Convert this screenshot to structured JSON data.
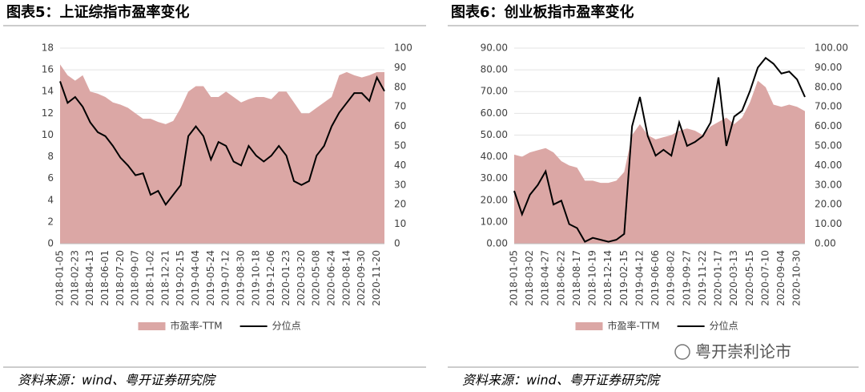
{
  "chart_data": [
    {
      "type": "combo",
      "title": "图表5：上证综指市盈率变化",
      "source": "资料来源：wind、粤开证券研究院",
      "categories": [
        "2018-01-05",
        null,
        "2018-02-23",
        null,
        "2018-04-13",
        null,
        "2018-06-01",
        null,
        "2018-07-20",
        null,
        "2018-09-07",
        null,
        "2018-11-02",
        null,
        "2018-12-21",
        null,
        "2019-02-15",
        null,
        "2019-04-04",
        null,
        "2019-05-24",
        null,
        "2019-07-12",
        null,
        "2019-08-30",
        null,
        "2019-10-18",
        null,
        "2019-12-06",
        null,
        "2020-01-23",
        null,
        "2020-03-20",
        null,
        "2020-05-08",
        null,
        "2020-06-24",
        null,
        "2020-08-14",
        null,
        "2020-09-30",
        null,
        "2020-11-20",
        null
      ],
      "series": [
        {
          "name": "市盈率-TTM",
          "type": "area",
          "color": "#dba7a5",
          "values": [
            16.5,
            15.5,
            15,
            15.5,
            14,
            13.8,
            13.5,
            13,
            12.8,
            12.5,
            12,
            11.5,
            11.5,
            11.2,
            11,
            11.3,
            12.5,
            14,
            14.5,
            14.5,
            13.5,
            13.5,
            14,
            13.5,
            13,
            13.3,
            13.5,
            13.5,
            13.3,
            14,
            14,
            13,
            12,
            12,
            12.5,
            13,
            13.5,
            15.5,
            15.8,
            15.5,
            15.3,
            15.5,
            15.8,
            15.8
          ]
        },
        {
          "name": "分位点",
          "type": "line",
          "axis": "y2",
          "color": "#000000",
          "values": [
            83,
            72,
            75,
            70,
            62,
            57,
            55,
            50,
            44,
            40,
            35,
            36,
            25,
            27,
            20,
            25,
            30,
            55,
            60,
            55,
            43,
            52,
            50,
            42,
            40,
            50,
            45,
            42,
            45,
            50,
            45,
            32,
            30,
            32,
            45,
            50,
            60,
            67,
            72,
            77,
            77,
            73,
            85,
            78
          ]
        }
      ],
      "ylim": [
        0,
        18
      ],
      "yticks": [
        0,
        2,
        4,
        6,
        8,
        10,
        12,
        14,
        16,
        18
      ],
      "y2lim": [
        0,
        100
      ],
      "y2ticks": [
        0,
        10,
        20,
        30,
        40,
        50,
        60,
        70,
        80,
        90,
        100
      ],
      "grid": true
    },
    {
      "type": "combo",
      "title": "图表6：创业板指市盈率变化",
      "source": "资料来源：wind、粤开证券研究院",
      "categories": [
        "2018-01-05",
        null,
        "2018-03-02",
        null,
        "2018-04-27",
        null,
        "2018-06-22",
        null,
        "2018-08-17",
        null,
        "2018-10-19",
        null,
        "2018-12-14",
        null,
        "2019-02-15",
        null,
        "2019-04-12",
        null,
        "2019-06-06",
        null,
        "2019-08-02",
        null,
        "2019-09-27",
        null,
        "2019-11-22",
        null,
        "2020-01-17",
        null,
        "2020-03-13",
        null,
        "2020-05-15",
        null,
        "2020-07-10",
        null,
        "2020-09-04",
        null,
        "2020-10-30",
        null
      ],
      "series": [
        {
          "name": "市盈率-TTM",
          "type": "area",
          "color": "#dba7a5",
          "values": [
            41,
            40,
            42,
            43,
            44,
            42,
            38,
            36,
            35,
            29,
            29,
            28,
            28,
            29,
            33,
            50,
            55,
            50,
            48,
            49,
            50,
            52,
            53,
            52,
            50,
            54,
            56,
            58,
            55,
            58,
            65,
            75,
            72,
            64,
            63,
            64,
            63,
            61
          ]
        },
        {
          "name": "分位点",
          "type": "line",
          "axis": "y2",
          "color": "#000000",
          "values": [
            27,
            15,
            25,
            30,
            37,
            20,
            22,
            10,
            8,
            1,
            3,
            2,
            1,
            2,
            5,
            60,
            75,
            55,
            45,
            48,
            45,
            62,
            50,
            52,
            55,
            62,
            85,
            50,
            65,
            68,
            78,
            90,
            95,
            92,
            87,
            88,
            84,
            75
          ]
        }
      ],
      "ylim": [
        0,
        90
      ],
      "yticks": [
        {
          "value": 0,
          "label": "0.00"
        },
        {
          "value": 10,
          "label": "10.00"
        },
        {
          "value": 20,
          "label": "20.00"
        },
        {
          "value": 30,
          "label": "30.00"
        },
        {
          "value": 40,
          "label": "40.00"
        },
        {
          "value": 50,
          "label": "50.00"
        },
        {
          "value": 60,
          "label": "60.00"
        },
        {
          "value": 70,
          "label": "70.00"
        },
        {
          "value": 80,
          "label": "80.00"
        },
        {
          "value": 90,
          "label": "90.00"
        }
      ],
      "y2lim": [
        0,
        100
      ],
      "y2ticks": [
        {
          "value": 0,
          "label": "0.00"
        },
        {
          "value": 10,
          "label": "10.00"
        },
        {
          "value": 20,
          "label": "20.00"
        },
        {
          "value": 30,
          "label": "30.00"
        },
        {
          "value": 40,
          "label": "40.00"
        },
        {
          "value": 50,
          "label": "50.00"
        },
        {
          "value": 60,
          "label": "60.00"
        },
        {
          "value": 70,
          "label": "70.00"
        },
        {
          "value": 80,
          "label": "80.00"
        },
        {
          "value": 90,
          "label": "90.00"
        },
        {
          "value": 100,
          "label": "100.00"
        }
      ],
      "grid": true
    }
  ],
  "watermark": "粤开崇利论市"
}
